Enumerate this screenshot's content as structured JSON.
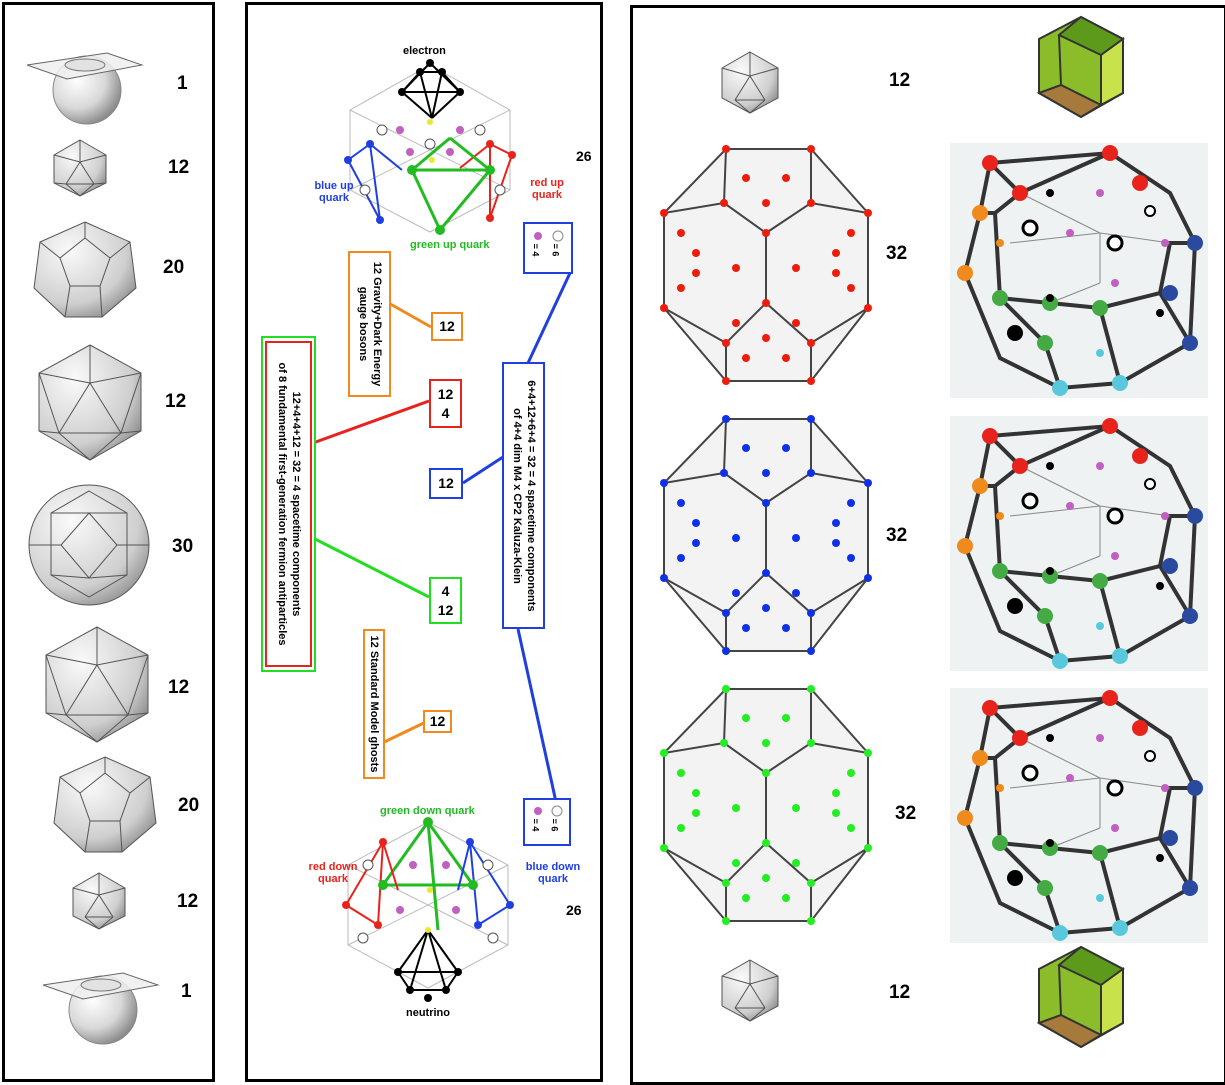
{
  "left_panel": {
    "counts": [
      "1",
      "12",
      "20",
      "12",
      "30",
      "12",
      "20",
      "12",
      "1"
    ]
  },
  "middle_panel": {
    "top_graph": {
      "electron": "electron",
      "blue_up": "blue up quark",
      "red_up": "red up quark",
      "green_up": "green up quark",
      "count": "26",
      "legend_a": "= 4",
      "legend_b": "= 6"
    },
    "bottom_graph": {
      "neutrino": "neutrino",
      "green_down": "green down quark",
      "red_down": "red down quark",
      "blue_down": "blue down quark",
      "count": "26",
      "legend_a": "= 4",
      "legend_b": "= 6"
    },
    "gravity_label": "12 Gravity+Dark Energy gauge bosons",
    "ghosts_label": "12 Standard Model ghosts",
    "fermion_label_line1": "12+4+4+12 = 32 = 4 spacetime components",
    "fermion_label_line2": "of 8 fundamental first-generation fermion antiparticles",
    "kk_label_line1": "6+4+12+6+4 = 32 = 4 spacetime components",
    "kk_label_line2": "of 4+4 dim M4 x CP2 Kaluza-Klein",
    "box_gravity": "12",
    "box_red_a": "12",
    "box_red_b": "4",
    "box_blue": "12",
    "box_green_a": "4",
    "box_green_b": "12",
    "box_ghosts": "12"
  },
  "right_panel": {
    "counts": [
      "12",
      "32",
      "32",
      "32",
      "12"
    ]
  },
  "colors": {
    "red": "#e8231c",
    "blue": "#1f3fe0",
    "green": "#22dd22",
    "orange": "#f08a1c",
    "gold_green": "#8bbd2a"
  }
}
